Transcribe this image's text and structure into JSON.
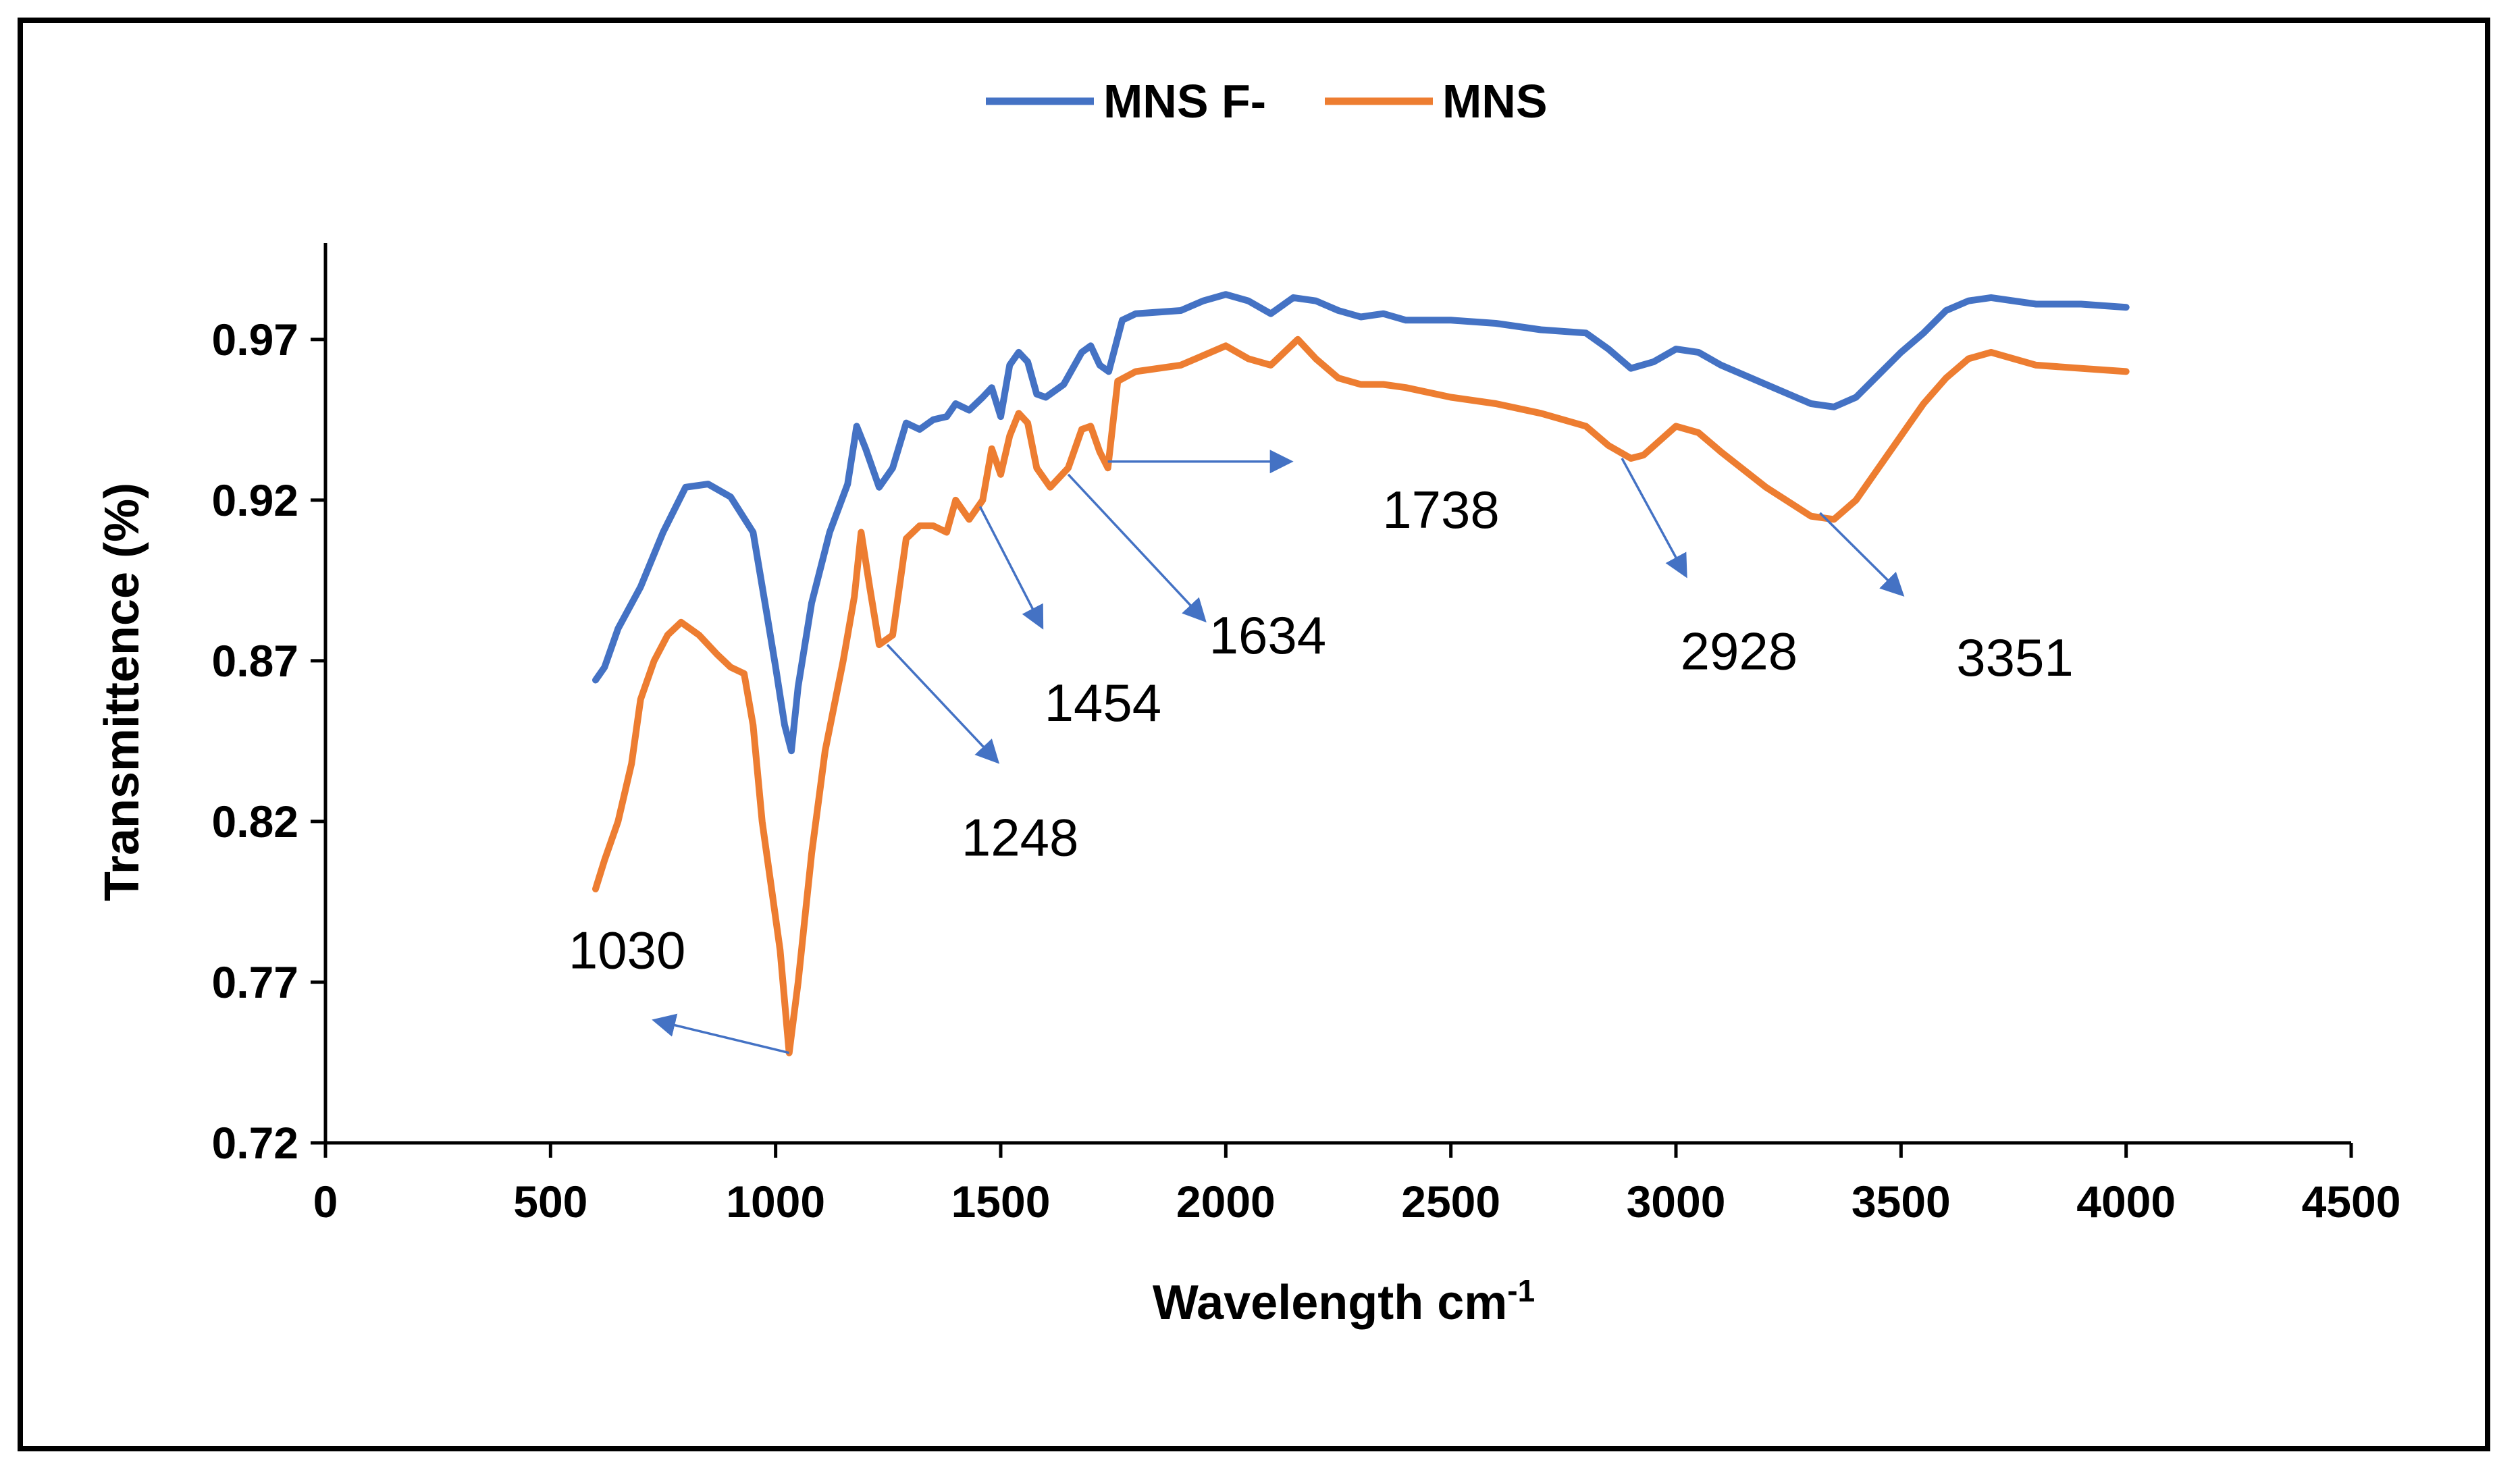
{
  "chart_data": {
    "type": "line",
    "title": "",
    "xlabel": "Wavelength cm",
    "xlabel_sup": "-1",
    "ylabel": "Transmittence (%)",
    "xlim": [
      0,
      4500
    ],
    "ylim": [
      0.72,
      1.0
    ],
    "xticks": [
      "0",
      "500",
      "1000",
      "1500",
      "2000",
      "2500",
      "3000",
      "3500",
      "4000",
      "4500"
    ],
    "yticks": [
      "0.72",
      "0.77",
      "0.82",
      "0.87",
      "0.92",
      "0.97"
    ],
    "legend_position": "top-center",
    "series": [
      {
        "name": "MNS F-",
        "color": "#4472C4",
        "points": [
          [
            600,
            0.864
          ],
          [
            620,
            0.868
          ],
          [
            650,
            0.88
          ],
          [
            700,
            0.893
          ],
          [
            750,
            0.91
          ],
          [
            800,
            0.924
          ],
          [
            850,
            0.925
          ],
          [
            900,
            0.921
          ],
          [
            950,
            0.91
          ],
          [
            980,
            0.885
          ],
          [
            1000,
            0.868
          ],
          [
            1020,
            0.85
          ],
          [
            1035,
            0.842
          ],
          [
            1050,
            0.862
          ],
          [
            1080,
            0.888
          ],
          [
            1120,
            0.91
          ],
          [
            1160,
            0.925
          ],
          [
            1180,
            0.943
          ],
          [
            1200,
            0.936
          ],
          [
            1230,
            0.924
          ],
          [
            1260,
            0.93
          ],
          [
            1290,
            0.944
          ],
          [
            1320,
            0.942
          ],
          [
            1350,
            0.945
          ],
          [
            1380,
            0.946
          ],
          [
            1400,
            0.95
          ],
          [
            1430,
            0.948
          ],
          [
            1460,
            0.952
          ],
          [
            1480,
            0.955
          ],
          [
            1500,
            0.946
          ],
          [
            1520,
            0.962
          ],
          [
            1540,
            0.966
          ],
          [
            1560,
            0.963
          ],
          [
            1580,
            0.953
          ],
          [
            1600,
            0.952
          ],
          [
            1640,
            0.956
          ],
          [
            1680,
            0.966
          ],
          [
            1700,
            0.968
          ],
          [
            1720,
            0.962
          ],
          [
            1740,
            0.96
          ],
          [
            1770,
            0.976
          ],
          [
            1800,
            0.978
          ],
          [
            1900,
            0.979
          ],
          [
            1950,
            0.982
          ],
          [
            2000,
            0.984
          ],
          [
            2050,
            0.982
          ],
          [
            2100,
            0.978
          ],
          [
            2150,
            0.983
          ],
          [
            2200,
            0.982
          ],
          [
            2250,
            0.979
          ],
          [
            2300,
            0.977
          ],
          [
            2350,
            0.978
          ],
          [
            2400,
            0.976
          ],
          [
            2500,
            0.976
          ],
          [
            2600,
            0.975
          ],
          [
            2700,
            0.973
          ],
          [
            2800,
            0.972
          ],
          [
            2850,
            0.967
          ],
          [
            2900,
            0.961
          ],
          [
            2950,
            0.963
          ],
          [
            3000,
            0.967
          ],
          [
            3050,
            0.966
          ],
          [
            3100,
            0.962
          ],
          [
            3200,
            0.956
          ],
          [
            3300,
            0.95
          ],
          [
            3351,
            0.949
          ],
          [
            3400,
            0.952
          ],
          [
            3450,
            0.959
          ],
          [
            3500,
            0.966
          ],
          [
            3550,
            0.972
          ],
          [
            3600,
            0.979
          ],
          [
            3650,
            0.982
          ],
          [
            3700,
            0.983
          ],
          [
            3800,
            0.981
          ],
          [
            3900,
            0.981
          ],
          [
            4000,
            0.98
          ]
        ]
      },
      {
        "name": "MNS",
        "color": "#ED7D31",
        "points": [
          [
            600,
            0.799
          ],
          [
            620,
            0.808
          ],
          [
            650,
            0.82
          ],
          [
            680,
            0.838
          ],
          [
            700,
            0.858
          ],
          [
            730,
            0.87
          ],
          [
            760,
            0.878
          ],
          [
            790,
            0.882
          ],
          [
            830,
            0.878
          ],
          [
            870,
            0.872
          ],
          [
            900,
            0.868
          ],
          [
            930,
            0.866
          ],
          [
            950,
            0.85
          ],
          [
            970,
            0.82
          ],
          [
            990,
            0.8
          ],
          [
            1010,
            0.78
          ],
          [
            1030,
            0.748
          ],
          [
            1050,
            0.77
          ],
          [
            1080,
            0.81
          ],
          [
            1110,
            0.842
          ],
          [
            1150,
            0.87
          ],
          [
            1175,
            0.89
          ],
          [
            1190,
            0.91
          ],
          [
            1210,
            0.892
          ],
          [
            1230,
            0.875
          ],
          [
            1260,
            0.878
          ],
          [
            1290,
            0.908
          ],
          [
            1320,
            0.912
          ],
          [
            1350,
            0.912
          ],
          [
            1380,
            0.91
          ],
          [
            1400,
            0.92
          ],
          [
            1430,
            0.914
          ],
          [
            1460,
            0.92
          ],
          [
            1480,
            0.936
          ],
          [
            1500,
            0.928
          ],
          [
            1520,
            0.94
          ],
          [
            1540,
            0.947
          ],
          [
            1560,
            0.944
          ],
          [
            1580,
            0.93
          ],
          [
            1610,
            0.924
          ],
          [
            1650,
            0.93
          ],
          [
            1680,
            0.942
          ],
          [
            1700,
            0.943
          ],
          [
            1720,
            0.935
          ],
          [
            1738,
            0.93
          ],
          [
            1760,
            0.957
          ],
          [
            1800,
            0.96
          ],
          [
            1900,
            0.962
          ],
          [
            1950,
            0.965
          ],
          [
            2000,
            0.968
          ],
          [
            2050,
            0.964
          ],
          [
            2100,
            0.962
          ],
          [
            2160,
            0.97
          ],
          [
            2200,
            0.964
          ],
          [
            2250,
            0.958
          ],
          [
            2300,
            0.956
          ],
          [
            2350,
            0.956
          ],
          [
            2400,
            0.955
          ],
          [
            2500,
            0.952
          ],
          [
            2600,
            0.95
          ],
          [
            2700,
            0.947
          ],
          [
            2800,
            0.943
          ],
          [
            2850,
            0.937
          ],
          [
            2900,
            0.933
          ],
          [
            2928,
            0.934
          ],
          [
            2960,
            0.938
          ],
          [
            3000,
            0.943
          ],
          [
            3050,
            0.941
          ],
          [
            3100,
            0.935
          ],
          [
            3200,
            0.924
          ],
          [
            3300,
            0.915
          ],
          [
            3351,
            0.914
          ],
          [
            3400,
            0.92
          ],
          [
            3450,
            0.93
          ],
          [
            3500,
            0.94
          ],
          [
            3550,
            0.95
          ],
          [
            3600,
            0.958
          ],
          [
            3650,
            0.964
          ],
          [
            3700,
            0.966
          ],
          [
            3800,
            0.962
          ],
          [
            3900,
            0.961
          ],
          [
            4000,
            0.96
          ]
        ]
      }
    ],
    "annotations": [
      {
        "text": "1030",
        "at": [
          1030,
          0.748
        ],
        "arrow_to": [
          735,
          0.758
        ],
        "label": [
          670,
          0.78
        ]
      },
      {
        "text": "1248",
        "at": [
          1248,
          0.875
        ],
        "arrow_to": [
          1490,
          0.839
        ],
        "label": [
          1543,
          0.815
        ]
      },
      {
        "text": "1454",
        "at": [
          1454,
          0.918
        ],
        "arrow_to": [
          1590,
          0.881
        ],
        "label": [
          1727,
          0.857
        ]
      },
      {
        "text": "1634",
        "at": [
          1650,
          0.928
        ],
        "arrow_to": [
          1950,
          0.883
        ],
        "label": [
          2093,
          0.878
        ]
      },
      {
        "text": "1738",
        "at": [
          1738,
          0.932
        ],
        "arrow_to": [
          2140,
          0.932
        ],
        "label": [
          2478,
          0.917
        ]
      },
      {
        "text": "2928",
        "at": [
          2880,
          0.933
        ],
        "arrow_to": [
          3020,
          0.897
        ],
        "label": [
          3140,
          0.873
        ]
      },
      {
        "text": "3351",
        "at": [
          3320,
          0.916
        ],
        "arrow_to": [
          3500,
          0.891
        ],
        "label": [
          3753,
          0.871
        ]
      }
    ]
  }
}
